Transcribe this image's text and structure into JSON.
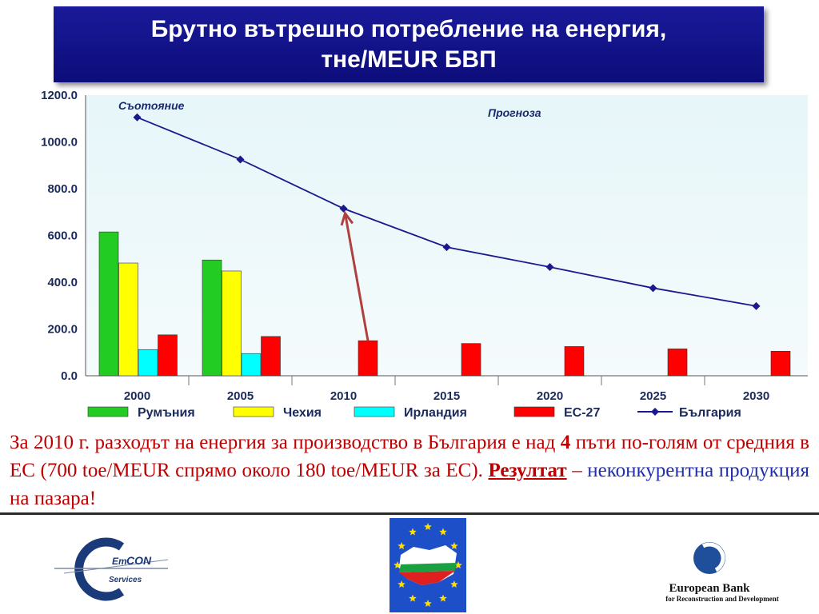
{
  "title": {
    "line1": "Брутно вътрешно потребление на енергия,",
    "line2": "тне/MEUR БВП"
  },
  "chart_data": {
    "type": "bar+line",
    "categories": [
      "2000",
      "2005",
      "2010",
      "2015",
      "2020",
      "2025",
      "2030"
    ],
    "ylim": [
      0,
      1200
    ],
    "yticks": [
      "0.0",
      "200.0",
      "400.0",
      "600.0",
      "800.0",
      "1000.0",
      "1200.0"
    ],
    "grid": false,
    "legend_position": "bottom",
    "annotations": [
      "Съотояние",
      "Прогноза"
    ],
    "series": [
      {
        "name": "Румъния",
        "kind": "bar",
        "color": "#22cc22",
        "values": [
          615,
          495,
          null,
          null,
          null,
          null,
          null
        ]
      },
      {
        "name": "Чехия",
        "kind": "bar",
        "color": "#ffff00",
        "values": [
          482,
          448,
          null,
          null,
          null,
          null,
          null
        ]
      },
      {
        "name": "Ирландия",
        "kind": "bar",
        "color": "#00ffff",
        "values": [
          112,
          95,
          null,
          null,
          null,
          null,
          null
        ]
      },
      {
        "name": "ЕС-27",
        "kind": "bar",
        "color": "#ff0000",
        "values": [
          175,
          168,
          150,
          138,
          125,
          115,
          105
        ]
      },
      {
        "name": "България",
        "kind": "line",
        "color": "#1a1a8c",
        "values": [
          1105,
          925,
          715,
          550,
          465,
          375,
          298
        ]
      }
    ],
    "arrow": {
      "from_category": "2010",
      "from_value": 150,
      "to_category": "2010",
      "to_value": 715,
      "color": "#b04040"
    }
  },
  "paragraph": {
    "p1": "За 2010 г. разходът на енергия за производство в България е над ",
    "bold4": "4",
    "p2": " пъти по-голям от средния в ЕС (700 toe/MEUR спрямо около 180 toe/MEUR за ЕС). ",
    "result": "Резултат",
    "dash": " – ",
    "blue": "неконкурентна продукция",
    "p3": " на пазара!"
  },
  "logos": {
    "emcon": {
      "em": "Em",
      "con": "CON",
      "services": "Services"
    },
    "ebrd": {
      "line1": "European Bank",
      "line2": "for Reconstruction and Development"
    }
  }
}
